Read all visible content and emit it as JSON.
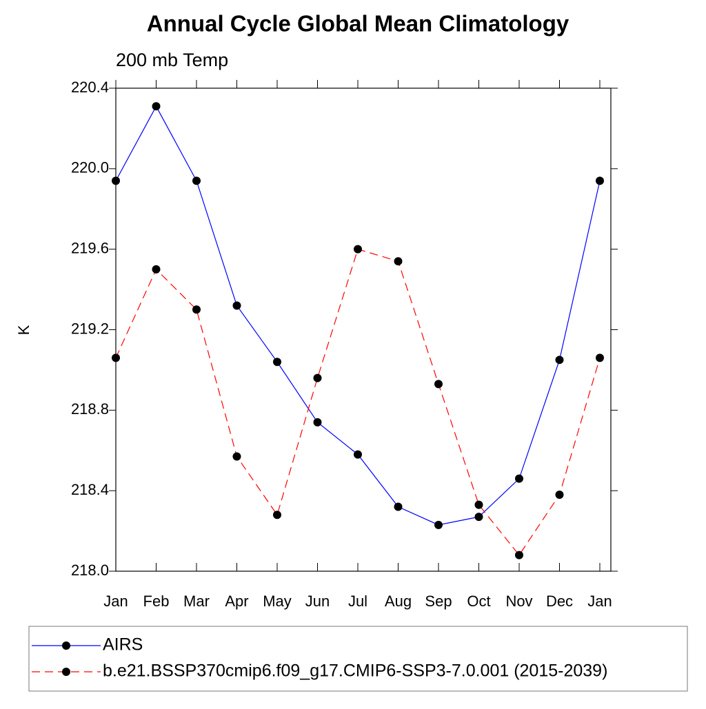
{
  "chart_data": {
    "type": "line",
    "title": "Annual Cycle Global Mean Climatology",
    "subtitle": "200 mb Temp",
    "y_label": "K",
    "categories": [
      "Jan",
      "Feb",
      "Mar",
      "Apr",
      "May",
      "Jun",
      "Jul",
      "Aug",
      "Sep",
      "Oct",
      "Nov",
      "Dec",
      "Jan"
    ],
    "series": [
      {
        "name": "AIRS",
        "color": "#0000ff",
        "dashed": false,
        "values": [
          219.94,
          220.31,
          219.94,
          219.32,
          219.04,
          218.74,
          218.58,
          218.32,
          218.23,
          218.27,
          218.46,
          219.05,
          219.94
        ]
      },
      {
        "name": "b.e21.BSSP370cmip6.f09_g17.CMIP6-SSP3-7.0.001 (2015-2039)",
        "color": "#ff0000",
        "dashed": true,
        "values": [
          219.06,
          219.5,
          219.3,
          218.57,
          218.28,
          218.96,
          219.6,
          219.54,
          218.93,
          218.33,
          218.08,
          218.38,
          219.06
        ]
      }
    ],
    "ylim": [
      218.0,
      220.4
    ],
    "yticks": [
      {
        "value": 218.0,
        "label": "218.0"
      },
      {
        "value": 218.4,
        "label": "218.4"
      },
      {
        "value": 218.8,
        "label": "218.8"
      },
      {
        "value": 219.2,
        "label": "219.2"
      },
      {
        "value": 219.6,
        "label": "219.6"
      },
      {
        "value": 220.0,
        "label": "220.0"
      },
      {
        "value": 220.4,
        "label": "220.4"
      }
    ],
    "grid": false
  }
}
